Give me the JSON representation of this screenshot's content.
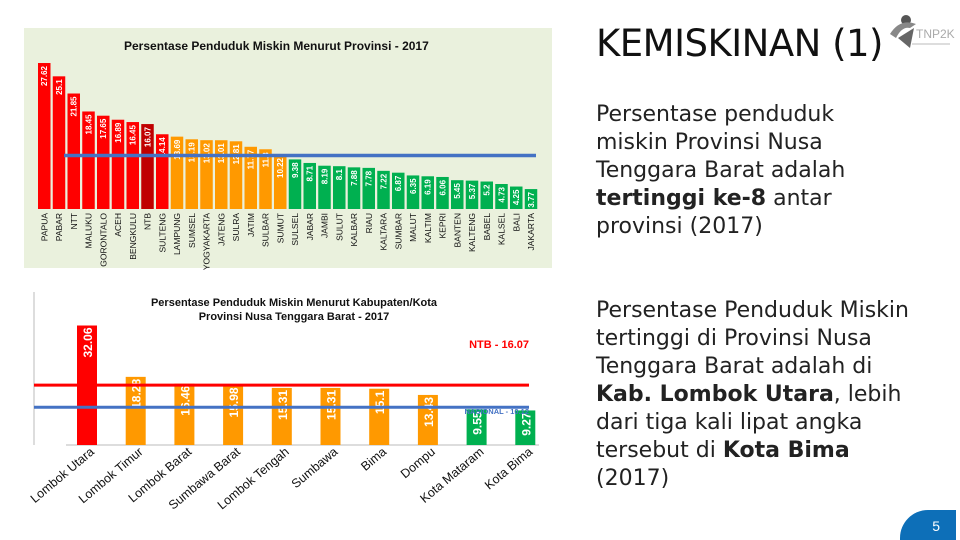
{
  "slide": {
    "title": "KEMISKINAN (1)",
    "paragraph1": {
      "pre": "Persentase penduduk miskin Provinsi Nusa Tenggara Barat adalah ",
      "bold": "tertinggi ke-8",
      "post": " antar provinsi (2017)"
    },
    "paragraph2": {
      "a": "Persentase Penduduk Miskin tertinggi di Provinsi Nusa Tenggara Barat adalah di ",
      "b": "Kab. Lombok Utara",
      "c": ", lebih dari tiga kali lipat angka tersebut di ",
      "d": "Kota Bima",
      "e": " (2017)"
    },
    "page_number": "5",
    "logo_icon": "tnp2k-logo-icon",
    "logo_text": "TNP2K"
  },
  "chart_data": [
    {
      "type": "bar",
      "title": "Persentase Penduduk Miskin Menurut Provinsi - 2017",
      "categories": [
        "PAPUA",
        "PABAR",
        "NTT",
        "MALUKU",
        "GORONTALO",
        "ACEH",
        "BENGKULU",
        "NTB",
        "SULTENG",
        "LAMPUNG",
        "SUMSEL",
        "YOGYAKARTA",
        "JATENG",
        "SULRA",
        "JATIM",
        "SULBAR",
        "SUMUT",
        "SULSEL",
        "JABAR",
        "JAMBI",
        "SULUT",
        "KALBAR",
        "RIAU",
        "KALTARA",
        "SUMBAR",
        "MALUT",
        "KALTIM",
        "KEPRI",
        "BANTEN",
        "KALTENG",
        "BABEL",
        "KALSEL",
        "BALI",
        "JAKARTA"
      ],
      "values": [
        27.62,
        25.1,
        21.85,
        18.45,
        17.65,
        16.89,
        16.45,
        16.07,
        14.14,
        13.69,
        13.19,
        13.02,
        13.01,
        12.81,
        11.77,
        11.3,
        10.22,
        9.38,
        8.71,
        8.19,
        8.1,
        7.88,
        7.78,
        7.22,
        6.87,
        6.35,
        6.19,
        6.06,
        5.45,
        5.37,
        5.2,
        4.73,
        4.25,
        3.77
      ],
      "value_labels": [
        "27.62",
        "25.1",
        "21.85",
        "18.45",
        "17.65",
        "16.89",
        "16.45",
        "16.07",
        "14.14",
        "13.69",
        "13.19",
        "13.02",
        "13.01",
        "12.81",
        "11.77",
        "11.3",
        "10.22",
        "9.38",
        "8.71",
        "8.19",
        "8.1",
        "7.88",
        "7.78",
        "7.22",
        "6.87",
        "6.35",
        "6.19",
        "6.06",
        "5.45",
        "5.37",
        "5.2",
        "4.73",
        "4.25",
        "3.77"
      ],
      "highlight_category": "NTB",
      "reference_line": {
        "value": 10.12
      },
      "ylim": [
        0,
        28
      ],
      "colors": {
        "high": "#ff0000",
        "mid": "#ff9900",
        "low": "#00b050",
        "highlight": "#c00000",
        "reference": "#4472c4",
        "background": "#eaf1dd"
      }
    },
    {
      "type": "bar",
      "title": "Persentase Penduduk Miskin Menurut Kabupaten/Kota Provinsi Nusa Tenggara Barat - 2017",
      "categories": [
        "Lombok Utara",
        "Lombok Timur",
        "Lombok Barat",
        "Sumbawa Barat",
        "Lombok Tengah",
        "Sumbawa",
        "Bima",
        "Dompu",
        "Kota Mataram",
        "Kota Bima"
      ],
      "values": [
        32.06,
        18.28,
        16.46,
        15.98,
        15.31,
        15.31,
        15.1,
        13.43,
        9.55,
        9.27
      ],
      "value_labels": [
        "32.06",
        "18.28",
        "16.46",
        "15.98",
        "15.31",
        "15.31",
        "15.1",
        "13.43",
        "9.55",
        "9.27"
      ],
      "reference_lines": [
        {
          "label": "NTB - 16.07",
          "value": 16.07
        },
        {
          "label": "NASIONAL - 10.12",
          "value": 10.12
        }
      ],
      "ylim": [
        0,
        33
      ],
      "colors": {
        "bars": [
          "#ff0000",
          "#ff9900",
          "#ff9900",
          "#ff9900",
          "#ff9900",
          "#ff9900",
          "#ff9900",
          "#ff9900",
          "#00b050",
          "#00b050"
        ],
        "ntb_line": "#ff0000",
        "national_line": "#4472c4"
      }
    }
  ]
}
